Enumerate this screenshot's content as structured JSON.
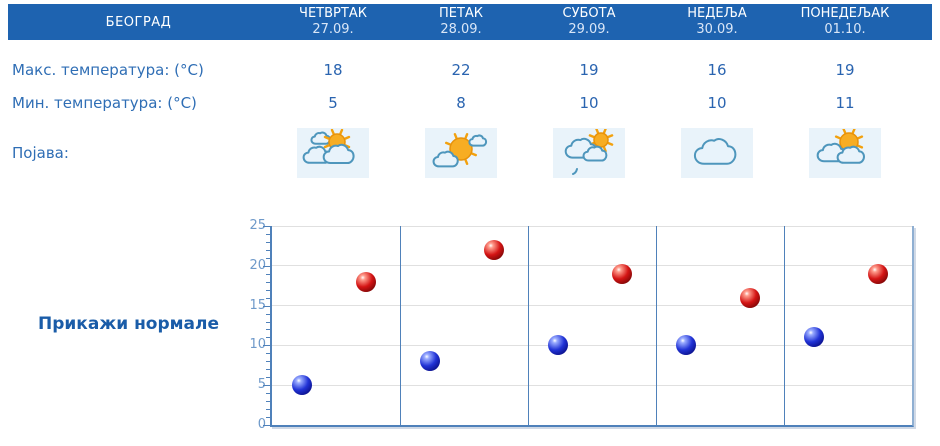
{
  "header": {
    "location": "БЕОГРАД",
    "days": [
      {
        "name": "ЧЕТВРТАК",
        "date": "27.09."
      },
      {
        "name": "ПЕТАК",
        "date": "28.09."
      },
      {
        "name": "СУБОТА",
        "date": "29.09."
      },
      {
        "name": "НЕДЕЉА",
        "date": "30.09."
      },
      {
        "name": "ПОНЕДЕЉАК",
        "date": "01.10."
      }
    ]
  },
  "rows": {
    "max_label": "Макс. температура: (°C)",
    "max_values": [
      "18",
      "22",
      "19",
      "16",
      "19"
    ],
    "min_label": "Мин. температура: (°C)",
    "min_values": [
      "5",
      "8",
      "10",
      "10",
      "11"
    ],
    "phenomena_label": "Појава:",
    "phenomena_icons": [
      "sun-behind-clouds-icon",
      "sunny-with-cloud-icon",
      "sun-clouds-rain-icon",
      "cloudy-icon",
      "sun-behind-clouds-2-icon"
    ]
  },
  "actions": {
    "show_normals_label": "Прикажи нормале"
  },
  "colors": {
    "header_bg": "#1E63B0",
    "header_text": "#FFFFFF",
    "header_date": "#D9E6F7",
    "table_text": "#2F6EB5",
    "value_text": "#2A64B0",
    "link": "#1A5CA8",
    "axis": "#4F81BA",
    "axis_label": "#6F9ACA",
    "grid": "#E0E0E0",
    "icon_bg": "#E9F3FA",
    "dot_max": "#D41414",
    "dot_min": "#2133D6"
  },
  "chart_data": {
    "type": "scatter",
    "categories": [
      "27.09.",
      "28.09.",
      "29.09.",
      "30.09.",
      "01.10."
    ],
    "series": [
      {
        "name": "Макс. температура",
        "color": "#D41414",
        "values": [
          18,
          22,
          19,
          16,
          19
        ]
      },
      {
        "name": "Мин. температура",
        "color": "#2133D6",
        "values": [
          5,
          8,
          10,
          10,
          11
        ]
      }
    ],
    "title": "",
    "xlabel": "",
    "ylabel": "",
    "ylim": [
      0,
      25
    ],
    "yticks": [
      0,
      5,
      10,
      15,
      20,
      25
    ],
    "minor_tick_step": 1,
    "grid": true,
    "legend_position": "none"
  }
}
